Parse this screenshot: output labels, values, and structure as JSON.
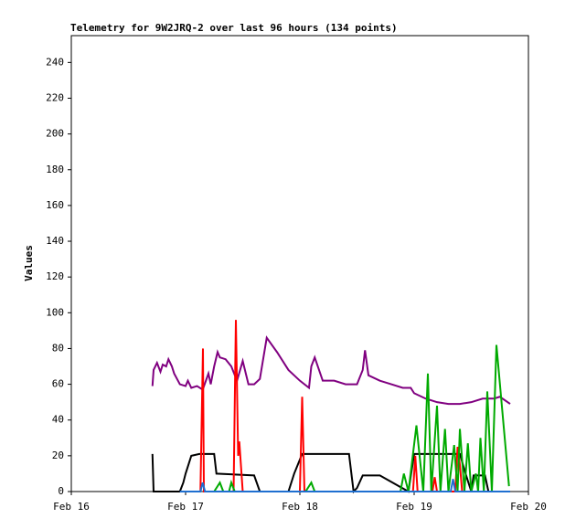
{
  "chart_data": {
    "type": "line",
    "title": "Telemetry for 9W2JRQ-2 over last 96 hours (134 points)",
    "y_label": "Values",
    "xlim": [
      0,
      4
    ],
    "xticks": [
      {
        "value": 0,
        "label": "Feb 16"
      },
      {
        "value": 1,
        "label": "Feb 17"
      },
      {
        "value": 2,
        "label": "Feb 18"
      },
      {
        "value": 3,
        "label": "Feb 19"
      },
      {
        "value": 4,
        "label": "Feb 20"
      }
    ],
    "ylim": [
      0,
      255
    ],
    "yticks": [
      0,
      20,
      40,
      60,
      80,
      100,
      120,
      140,
      160,
      180,
      200,
      220,
      240
    ],
    "series": [
      {
        "color": "#800080",
        "x": [
          0.71,
          0.72,
          0.75,
          0.78,
          0.8,
          0.83,
          0.85,
          0.88,
          0.9,
          0.95,
          1.0,
          1.02,
          1.05,
          1.1,
          1.15,
          1.2,
          1.22,
          1.25,
          1.28,
          1.3,
          1.35,
          1.4,
          1.45,
          1.5,
          1.55,
          1.6,
          1.65,
          1.71,
          1.8,
          1.9,
          2.0,
          2.08,
          2.1,
          2.13,
          2.2,
          2.3,
          2.4,
          2.5,
          2.55,
          2.57,
          2.6,
          2.7,
          2.8,
          2.9,
          2.97,
          3.0,
          3.1,
          3.2,
          3.3,
          3.4,
          3.5,
          3.6,
          3.7,
          3.75,
          3.84
        ],
        "values": [
          59,
          68,
          72,
          67,
          71,
          70,
          74,
          70,
          66,
          60,
          59,
          62,
          58,
          59,
          57,
          66,
          60,
          70,
          78,
          75,
          74,
          70,
          62,
          73,
          60,
          60,
          63,
          86,
          78,
          68,
          62,
          58,
          70,
          75,
          62,
          62,
          60,
          60,
          68,
          79,
          65,
          62,
          60,
          58,
          58,
          55,
          52,
          50,
          49,
          49,
          50,
          52,
          52,
          53,
          49
        ]
      },
      {
        "color": "#000000",
        "x": [
          0.71,
          0.72,
          0.95,
          0.98,
          1.0,
          1.05,
          1.12,
          1.25,
          1.27,
          1.6,
          1.65,
          1.9,
          1.95,
          2.02,
          2.43,
          2.47,
          2.5,
          2.55,
          2.7,
          2.95,
          3.0,
          3.4,
          3.45,
          3.5,
          3.52,
          3.62,
          3.65,
          3.84
        ],
        "values": [
          21,
          0,
          0,
          5,
          10,
          20,
          21,
          21,
          10,
          9,
          0,
          0,
          10,
          21,
          21,
          0,
          2,
          9,
          9,
          0,
          21,
          21,
          10,
          0,
          9,
          9,
          0,
          0
        ]
      },
      {
        "color": "#ff0000",
        "x": [
          1.13,
          1.152,
          1.16,
          1.42,
          1.44,
          1.46,
          1.47,
          1.5,
          1.52,
          2.0,
          2.02,
          2.04,
          2.99,
          3.01,
          3.03,
          3.16,
          3.18,
          3.2,
          3.36,
          3.38,
          3.4,
          3.42
        ],
        "values": [
          0,
          80,
          0,
          0,
          96,
          20,
          28,
          0,
          0,
          0,
          53,
          0,
          0,
          20,
          0,
          0,
          8,
          0,
          0,
          25,
          15,
          0
        ]
      },
      {
        "color": "#00aa00",
        "x": [
          1.25,
          1.3,
          1.33,
          1.38,
          1.4,
          1.43,
          2.05,
          2.1,
          2.13,
          2.88,
          2.91,
          2.95,
          3.02,
          3.08,
          3.12,
          3.15,
          3.2,
          3.23,
          3.27,
          3.3,
          3.35,
          3.38,
          3.4,
          3.44,
          3.47,
          3.5,
          3.54,
          3.56,
          3.58,
          3.61,
          3.64,
          3.68,
          3.72,
          3.83
        ],
        "values": [
          0,
          5,
          0,
          0,
          5,
          0,
          0,
          5,
          0,
          0,
          10,
          0,
          37,
          0,
          66,
          0,
          48,
          0,
          35,
          0,
          26,
          0,
          35,
          0,
          27,
          0,
          10,
          0,
          30,
          0,
          56,
          0,
          82,
          3
        ]
      },
      {
        "color": "#1f6fd0",
        "x": [
          0.95,
          1.13,
          1.15,
          1.17,
          3.32,
          3.34,
          3.36,
          3.84
        ],
        "values": [
          0,
          0,
          5,
          0,
          0,
          7,
          0,
          0
        ]
      }
    ]
  }
}
